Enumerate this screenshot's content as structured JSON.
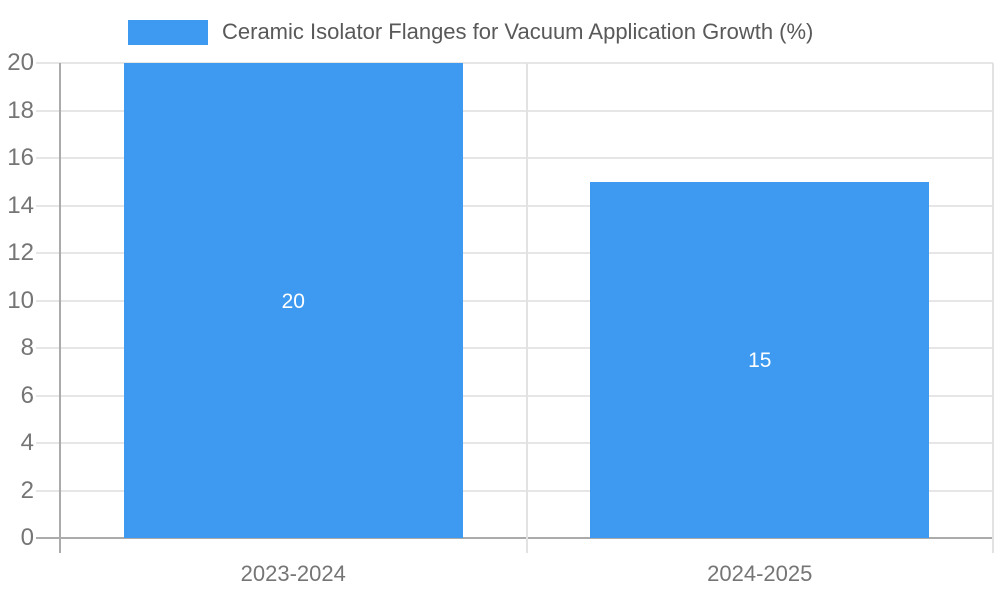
{
  "chart_data": {
    "type": "bar",
    "title": "",
    "series_name": "Ceramic Isolator Flanges for Vacuum Application Growth (%)",
    "categories": [
      "2023-2024",
      "2024-2025"
    ],
    "values": [
      20,
      15
    ],
    "data_labels": [
      "20",
      "15"
    ],
    "xlabel": "",
    "ylabel": "",
    "ylim": [
      0,
      20
    ],
    "ytick_step": 2,
    "yticks": [
      0,
      2,
      4,
      6,
      8,
      10,
      12,
      14,
      16,
      18,
      20
    ],
    "grid": true,
    "legend_position": "top",
    "colors": {
      "bar": "#3D9AF0",
      "data_label": "#ffffff",
      "gridline": "#e6e6e6",
      "vertical_gridline": "#e2e2e2",
      "axis_line": "#ababab",
      "tick_label": "#757575",
      "legend_text": "#595959",
      "background": "#ffffff"
    }
  }
}
